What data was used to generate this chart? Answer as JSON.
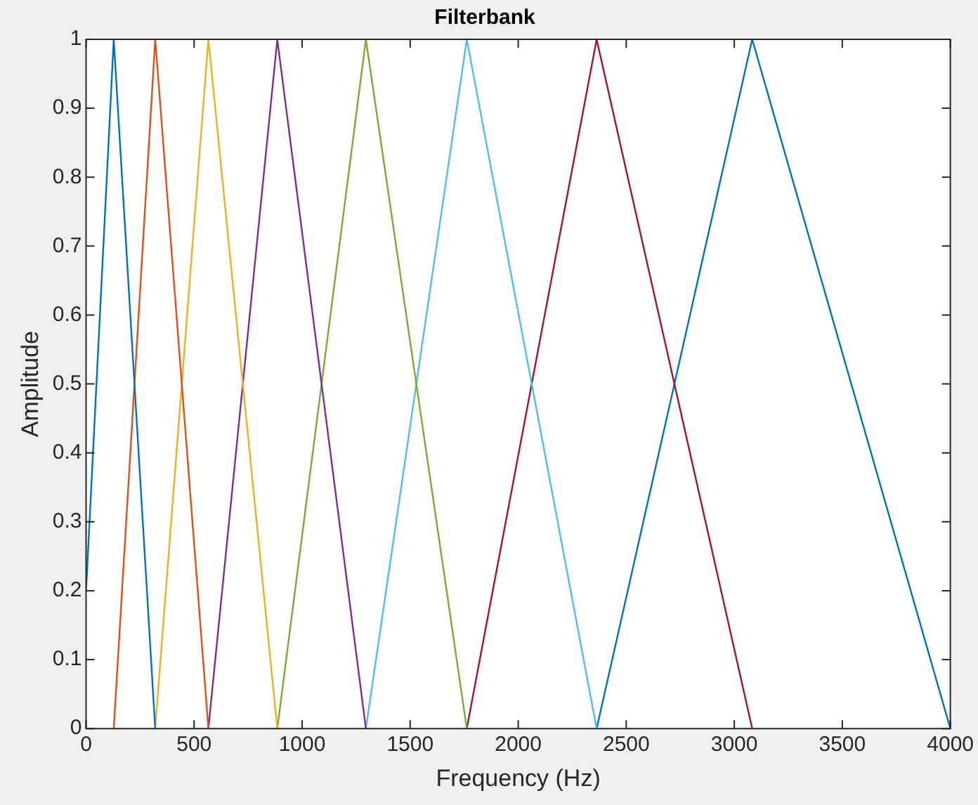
{
  "chart_data": {
    "type": "line",
    "title": "Filterbank",
    "xlabel": "Frequency (Hz)",
    "ylabel": "Amplitude",
    "xlim": [
      0,
      4000
    ],
    "ylim": [
      0,
      1
    ],
    "xticks": [
      0,
      500,
      1000,
      1500,
      2000,
      2500,
      3000,
      3500,
      4000
    ],
    "yticks": [
      0,
      0.1,
      0.2,
      0.3,
      0.4,
      0.5,
      0.6,
      0.7,
      0.8,
      0.9,
      1
    ],
    "grid": false,
    "legend": false,
    "marker": "none",
    "line_style": "solid",
    "series": [
      {
        "color": "#0072bd",
        "x": [
          0,
          128,
          320
        ],
        "values": [
          0.2,
          1,
          0
        ]
      },
      {
        "color": "#d95319",
        "x": [
          128,
          320,
          566
        ],
        "values": [
          0,
          1,
          0
        ]
      },
      {
        "color": "#edb120",
        "x": [
          320,
          566,
          885
        ],
        "values": [
          0,
          1,
          0
        ]
      },
      {
        "color": "#7e2f8e",
        "x": [
          566,
          885,
          1295
        ],
        "values": [
          0,
          1,
          0
        ]
      },
      {
        "color": "#77ac30",
        "x": [
          885,
          1295,
          1762
        ],
        "values": [
          0,
          1,
          0
        ]
      },
      {
        "color": "#4dbeee",
        "x": [
          1295,
          1762,
          2363
        ],
        "values": [
          0,
          1,
          0
        ]
      },
      {
        "color": "#a2142f",
        "x": [
          1762,
          2363,
          3083
        ],
        "values": [
          0,
          1,
          0
        ]
      },
      {
        "color": "#0072bd",
        "x": [
          2363,
          3083,
          4000
        ],
        "values": [
          0,
          1,
          0
        ]
      }
    ]
  }
}
